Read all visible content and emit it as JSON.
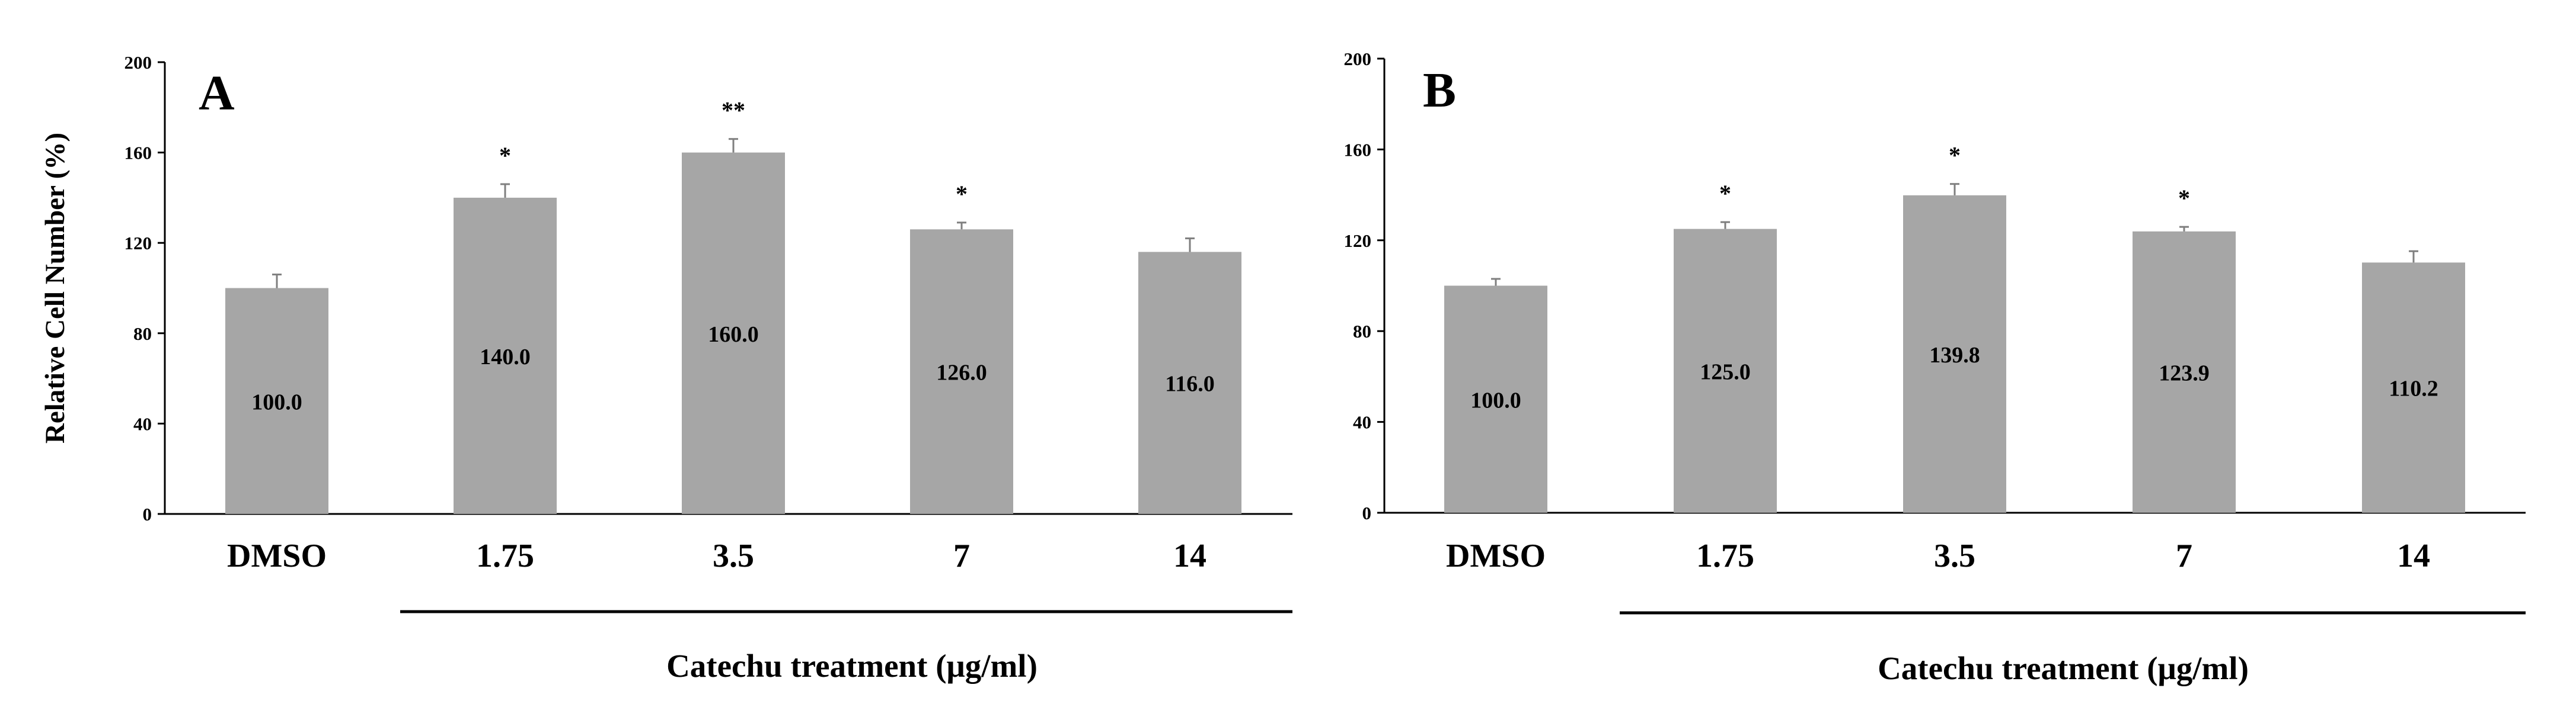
{
  "chart_data": [
    {
      "type": "bar",
      "panel_label": "A",
      "categories": [
        "DMSO",
        "1.75",
        "3.5",
        "7",
        "14"
      ],
      "values": [
        100.0,
        140.0,
        160.0,
        126.0,
        116.0
      ],
      "value_labels": [
        "100.0",
        "140.0",
        "160.0",
        "126.0",
        "116.0"
      ],
      "error": [
        6,
        6,
        6,
        3,
        6
      ],
      "significance": [
        "",
        "*",
        "**",
        "*",
        ""
      ],
      "ylabel": "Relative Cell Number (%)",
      "xlabel": "Catechu treatment (μg/ml)",
      "ylim": [
        0,
        200
      ],
      "yticks": [
        0,
        40,
        80,
        120,
        160,
        200
      ],
      "bar_color": "#a6a6a6"
    },
    {
      "type": "bar",
      "panel_label": "B",
      "categories": [
        "DMSO",
        "1.75",
        "3.5",
        "7",
        "14"
      ],
      "values": [
        100.0,
        125.0,
        139.8,
        123.9,
        110.2
      ],
      "value_labels": [
        "100.0",
        "125.0",
        "139.8",
        "123.9",
        "110.2"
      ],
      "error": [
        3,
        3,
        5,
        2,
        5
      ],
      "significance": [
        "",
        "*",
        "*",
        "*",
        ""
      ],
      "ylabel": "",
      "xlabel": "Catechu treatment (μg/ml)",
      "ylim": [
        0,
        200
      ],
      "yticks": [
        0,
        40,
        80,
        120,
        160,
        200
      ],
      "bar_color": "#a6a6a6"
    }
  ]
}
